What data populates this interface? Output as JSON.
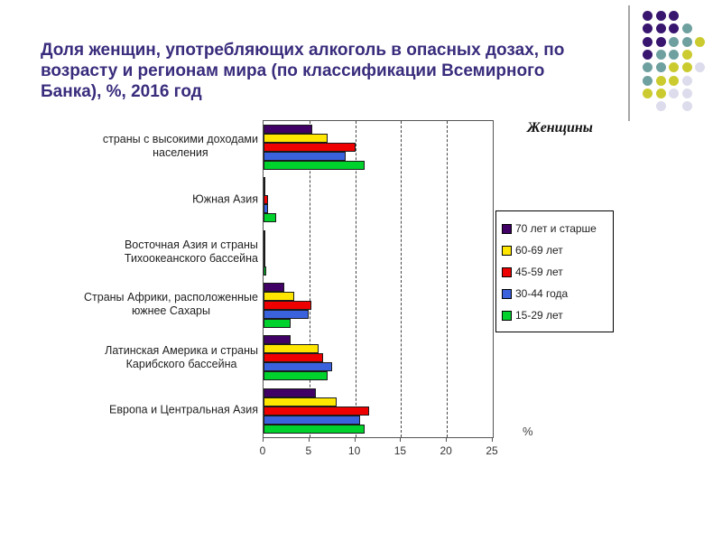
{
  "slide": {
    "title": "Доля женщин, употребляющих алкоголь в опасных дозах, по\nвозрасту и регионам мира (по классификации Всемирного\nБанка), %, 2016 год",
    "title_color": "#392C7C"
  },
  "annotations": {
    "women_label": "Женщины",
    "percent_label": "%"
  },
  "chart_data": {
    "type": "bar",
    "orientation": "horizontal",
    "title": "",
    "xlabel": "%",
    "ylabel": "",
    "xlim": [
      0,
      25
    ],
    "xticks": [
      0,
      5,
      10,
      15,
      20,
      25
    ],
    "gridlines": [
      5,
      10,
      15,
      20
    ],
    "grid_style": "dashed",
    "legend_position": "right",
    "categories": [
      "страны с высокими доходами\nнаселения",
      "Южная Азия",
      "Восточная Азия и страны\nТихоокеанского бассейна",
      "Страны Африки, расположенные\nюжнее Сахары",
      "Латинская Америка и страны\nКарибского бассейна",
      "Европа и Центральная Азия"
    ],
    "series": [
      {
        "name": "70 лет и старше",
        "color": "#400066",
        "values": [
          5.3,
          0.1,
          0.1,
          2.3,
          3.0,
          5.7
        ]
      },
      {
        "name": "60-69 лет",
        "color": "#FFE600",
        "values": [
          7.0,
          0.2,
          0.1,
          3.3,
          6.0,
          8.0
        ]
      },
      {
        "name": "45-59 лет",
        "color": "#EE0000",
        "values": [
          10.0,
          0.5,
          0.2,
          5.2,
          6.5,
          11.5
        ]
      },
      {
        "name": "30-44 года",
        "color": "#3A62DD",
        "values": [
          9.0,
          0.5,
          0.2,
          4.9,
          7.5,
          10.5
        ]
      },
      {
        "name": "15-29 лет",
        "color": "#00D22D",
        "values": [
          11.0,
          1.4,
          0.3,
          3.0,
          7.0,
          11.0
        ]
      }
    ]
  },
  "decor": {
    "line_color": "#A6A6A6",
    "dot_colors": {
      "P": "#38156E",
      "T": "#6FA0A0",
      "Y": "#CBCB2F",
      "L": "#DCDCEC"
    },
    "dot_pattern": [
      [
        "P",
        "P",
        "P",
        null,
        null
      ],
      [
        "P",
        "P",
        "P",
        "T",
        null
      ],
      [
        "P",
        "P",
        "T",
        "T",
        "Y"
      ],
      [
        "P",
        "T",
        "T",
        "Y",
        null
      ],
      [
        "T",
        "T",
        "Y",
        "Y",
        "L"
      ],
      [
        "T",
        "Y",
        "Y",
        "L",
        null
      ],
      [
        "Y",
        "Y",
        "L",
        "L",
        null
      ],
      [
        null,
        "L",
        null,
        "L",
        null
      ]
    ]
  }
}
